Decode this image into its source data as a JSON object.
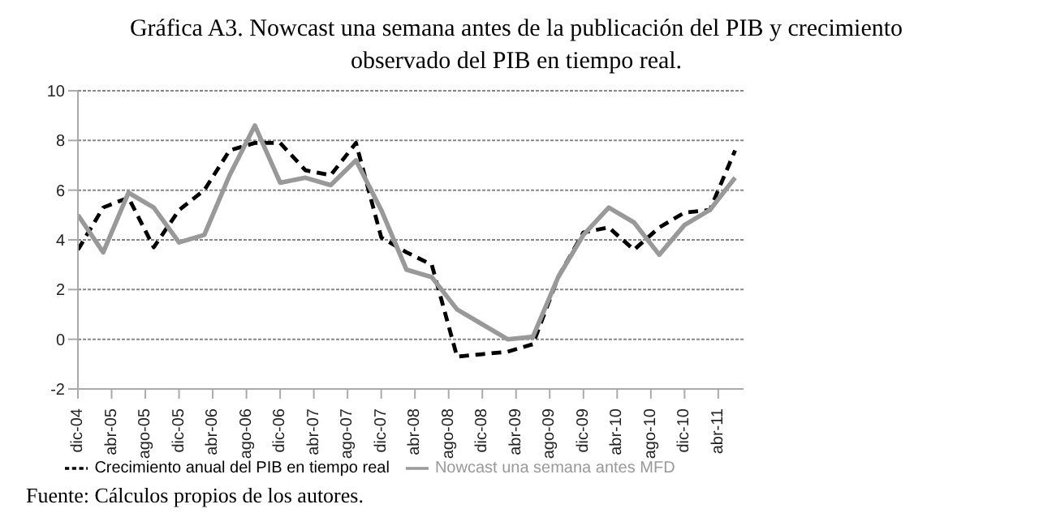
{
  "chart_data": {
    "type": "line",
    "title": "Gráfica A3. Nowcast una semana antes de la publicación del PIB y crecimiento observado del PIB en tiempo real.",
    "x": [
      "2004-12",
      "2005-03",
      "2005-06",
      "2005-09",
      "2005-12",
      "2006-03",
      "2006-06",
      "2006-09",
      "2006-12",
      "2007-03",
      "2007-06",
      "2007-09",
      "2007-12",
      "2008-03",
      "2008-06",
      "2008-09",
      "2008-12",
      "2009-03",
      "2009-06",
      "2009-09",
      "2009-12",
      "2010-03",
      "2010-06",
      "2010-09",
      "2010-12",
      "2011-03",
      "2011-06"
    ],
    "series": [
      {
        "name": "Crecimiento anual del PIB en tiempo real",
        "color": "#000000",
        "line_style": "dashed",
        "values": [
          3.6,
          5.3,
          5.7,
          3.7,
          5.2,
          6.0,
          7.6,
          7.9,
          7.9,
          6.8,
          6.6,
          7.9,
          4.1,
          3.5,
          3.0,
          -0.7,
          -0.6,
          -0.5,
          -0.2,
          2.5,
          4.3,
          4.5,
          3.6,
          4.5,
          5.1,
          5.2,
          7.6
        ]
      },
      {
        "name": "Nowcast una semana antes MFD",
        "color": "#999999",
        "line_style": "solid",
        "values": [
          5.0,
          3.5,
          5.9,
          5.3,
          3.9,
          4.2,
          6.6,
          8.6,
          6.3,
          6.5,
          6.2,
          7.2,
          5.2,
          2.8,
          2.5,
          1.2,
          0.6,
          0.0,
          0.1,
          2.5,
          4.2,
          5.3,
          4.7,
          3.4,
          4.6,
          5.2,
          6.5
        ]
      }
    ],
    "xlim": [
      "2004-12",
      "2011-07"
    ],
    "xticks": [
      {
        "value": "2004-12",
        "label": "dic-04"
      },
      {
        "value": "2005-04",
        "label": "abr-05"
      },
      {
        "value": "2005-08",
        "label": "ago-05"
      },
      {
        "value": "2005-12",
        "label": "dic-05"
      },
      {
        "value": "2006-04",
        "label": "abr-06"
      },
      {
        "value": "2006-08",
        "label": "ago-06"
      },
      {
        "value": "2006-12",
        "label": "dic-06"
      },
      {
        "value": "2007-04",
        "label": "abr-07"
      },
      {
        "value": "2007-08",
        "label": "ago-07"
      },
      {
        "value": "2007-12",
        "label": "dic-07"
      },
      {
        "value": "2008-04",
        "label": "abr-08"
      },
      {
        "value": "2008-08",
        "label": "ago-08"
      },
      {
        "value": "2008-12",
        "label": "dic-08"
      },
      {
        "value": "2009-04",
        "label": "abr-09"
      },
      {
        "value": "2009-08",
        "label": "ago-09"
      },
      {
        "value": "2009-12",
        "label": "dic-09"
      },
      {
        "value": "2010-04",
        "label": "abr-10"
      },
      {
        "value": "2010-08",
        "label": "ago-10"
      },
      {
        "value": "2010-12",
        "label": "dic-10"
      },
      {
        "value": "2011-04",
        "label": "abr-11"
      }
    ],
    "ylim": [
      -2,
      10
    ],
    "yticks": [
      -2,
      0,
      2,
      4,
      6,
      8,
      10
    ],
    "grid": "y",
    "legend": "bottom",
    "marker": "none",
    "annotations": [
      "Fuente: Cálculos propios de los autores."
    ]
  }
}
